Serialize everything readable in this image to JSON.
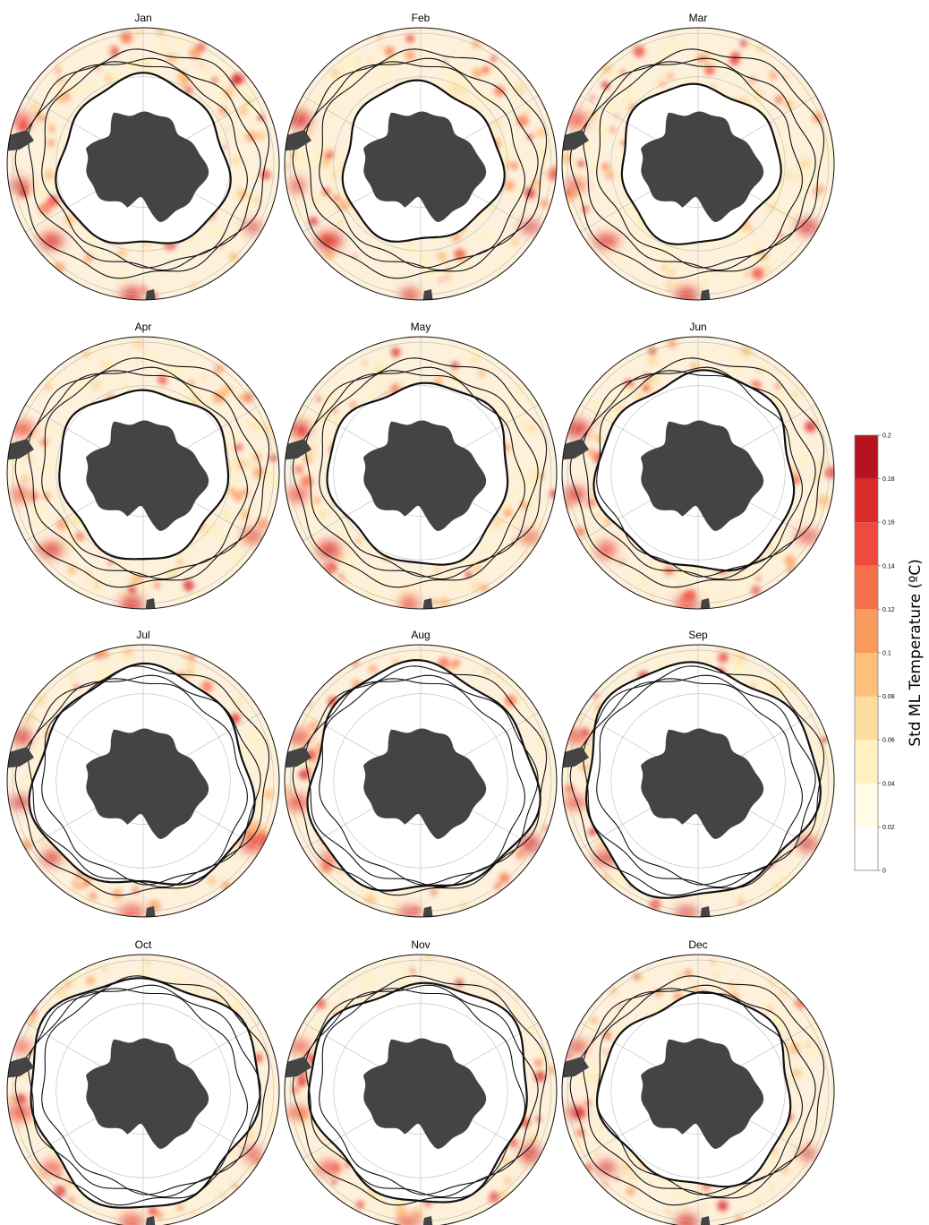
{
  "panels": [
    {
      "title": "Jan",
      "ice_edge_scale": 0.62
    },
    {
      "title": "Feb",
      "ice_edge_scale": 0.58
    },
    {
      "title": "Mar",
      "ice_edge_scale": 0.58
    },
    {
      "title": "Apr",
      "ice_edge_scale": 0.62
    },
    {
      "title": "May",
      "ice_edge_scale": 0.66
    },
    {
      "title": "Jun",
      "ice_edge_scale": 0.72
    },
    {
      "title": "Jul",
      "ice_edge_scale": 0.8
    },
    {
      "title": "Aug",
      "ice_edge_scale": 0.83
    },
    {
      "title": "Sep",
      "ice_edge_scale": 0.85
    },
    {
      "title": "Oct",
      "ice_edge_scale": 0.84
    },
    {
      "title": "Nov",
      "ice_edge_scale": 0.8
    },
    {
      "title": "Dec",
      "ice_edge_scale": 0.7
    }
  ],
  "colorbar": {
    "label": "Std ML Temperature (ºC)",
    "ticks": [
      "0",
      "0.02",
      "0.04",
      "0.06",
      "0.08",
      "0.1",
      "0.12",
      "0.14",
      "0.16",
      "0.18",
      "0.2"
    ],
    "colors": [
      "#ffffff",
      "#fffbe6",
      "#fff1c2",
      "#fddc9d",
      "#fcc07a",
      "#fa9b5e",
      "#f6704c",
      "#ef4a3e",
      "#db2a2c",
      "#b5141e"
    ]
  },
  "colors": {
    "land": "#444444",
    "ocean_background": "#fdf1dc",
    "contour": "#111111",
    "graticule": "#bbbbbb"
  }
}
